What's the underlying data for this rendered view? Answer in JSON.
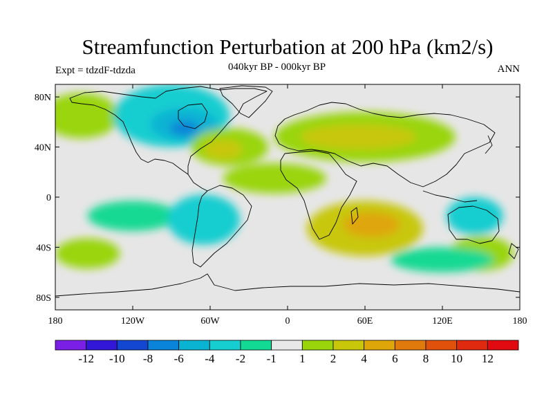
{
  "header": {
    "title": "Streamfunction Perturbation at 200 hPa (km2/s)",
    "subtitle": "040kyr BP - 000kyr BP",
    "left_label": "Expt = tdzdF-tdzda",
    "right_label": "ANN"
  },
  "map": {
    "projection": "cylindrical equidistant",
    "lon_range": [
      -180,
      180
    ],
    "lat_range": [
      -90,
      90
    ],
    "y_ticks": [
      {
        "lat": 80,
        "label": "80N"
      },
      {
        "lat": 40,
        "label": "40N"
      },
      {
        "lat": 0,
        "label": "0"
      },
      {
        "lat": -40,
        "label": "40S"
      },
      {
        "lat": -80,
        "label": "80S"
      }
    ],
    "x_ticks": [
      {
        "lon": -180,
        "label": "180"
      },
      {
        "lon": -120,
        "label": "120W"
      },
      {
        "lon": -60,
        "label": "60W"
      },
      {
        "lon": 0,
        "label": "0"
      },
      {
        "lon": 60,
        "label": "60E"
      },
      {
        "lon": 120,
        "label": "120E"
      },
      {
        "lon": 180,
        "label": "180"
      }
    ],
    "features": [
      {
        "name": "n-pacific-green",
        "lon": -160,
        "lat": 65,
        "rlon": 30,
        "rlat": 18,
        "level": 1
      },
      {
        "name": "north-america-low",
        "lon": -90,
        "lat": 65,
        "rlon": 45,
        "rlat": 25,
        "level": -2
      },
      {
        "name": "north-america-core",
        "lon": -80,
        "lat": 58,
        "rlon": 26,
        "rlat": 13,
        "level": -4
      },
      {
        "name": "north-america-center",
        "lon": -80,
        "lat": 55,
        "rlon": 11,
        "rlat": 6,
        "level": -6
      },
      {
        "name": "n-atlantic-high",
        "lon": -45,
        "lat": 40,
        "rlon": 30,
        "rlat": 15,
        "level": 1
      },
      {
        "name": "n-atlantic-high-core",
        "lon": -50,
        "lat": 38,
        "rlon": 15,
        "rlat": 8,
        "level": 2
      },
      {
        "name": "eurasia-high",
        "lon": 60,
        "lat": 48,
        "rlon": 70,
        "rlat": 20,
        "level": 1
      },
      {
        "name": "eurasia-high-core",
        "lon": 55,
        "lat": 48,
        "rlon": 45,
        "rlat": 10,
        "level": 2
      },
      {
        "name": "tropical-atlantic-high",
        "lon": -10,
        "lat": 15,
        "rlon": 40,
        "rlat": 12,
        "level": 1
      },
      {
        "name": "s-pacific-low",
        "lon": -120,
        "lat": -15,
        "rlon": 35,
        "rlat": 12,
        "level": -1
      },
      {
        "name": "s-america-low",
        "lon": -65,
        "lat": -18,
        "rlon": 28,
        "rlat": 20,
        "level": -2
      },
      {
        "name": "indian-ocean-high",
        "lon": 60,
        "lat": -25,
        "rlon": 45,
        "rlat": 22,
        "level": 2
      },
      {
        "name": "indian-ocean-high-core",
        "lon": 65,
        "lat": -22,
        "rlon": 22,
        "rlat": 10,
        "level": 4
      },
      {
        "name": "w-pacific-low",
        "lon": 145,
        "lat": -15,
        "rlon": 22,
        "rlat": 15,
        "level": -2
      },
      {
        "name": "s-ocean-high-east",
        "lon": -155,
        "lat": -45,
        "rlon": 25,
        "rlat": 12,
        "level": 1
      },
      {
        "name": "s-ocean-high-west",
        "lon": 150,
        "lat": -45,
        "rlon": 25,
        "rlat": 14,
        "level": 1
      },
      {
        "name": "s-ocean-low",
        "lon": 120,
        "lat": -50,
        "rlon": 40,
        "rlat": 10,
        "level": -1
      }
    ]
  },
  "colorbar": {
    "levels": [
      "-12",
      "-10",
      "-8",
      "-6",
      "-4",
      "-2",
      "-1",
      "1",
      "2",
      "4",
      "6",
      "8",
      "10",
      "12"
    ],
    "colors": [
      "#7a1fe6",
      "#3317d9",
      "#1447d1",
      "#0a84d8",
      "#0bb3d3",
      "#16cdd0",
      "#12d993",
      "#e8e8e8",
      "#9ad50c",
      "#c8c70a",
      "#dfa60a",
      "#e07a0c",
      "#e0520c",
      "#e02a10",
      "#e00a10"
    ]
  },
  "legend_levels": {
    "-12": "#7a1fe6",
    "-10": "#3317d9",
    "-8": "#1447d1",
    "-6": "#0a84d8",
    "-4": "#0bb3d3",
    "-2": "#16cdd0",
    "-1": "#12d993",
    "1": "#9ad50c",
    "2": "#c8c70a",
    "4": "#dfa60a"
  }
}
